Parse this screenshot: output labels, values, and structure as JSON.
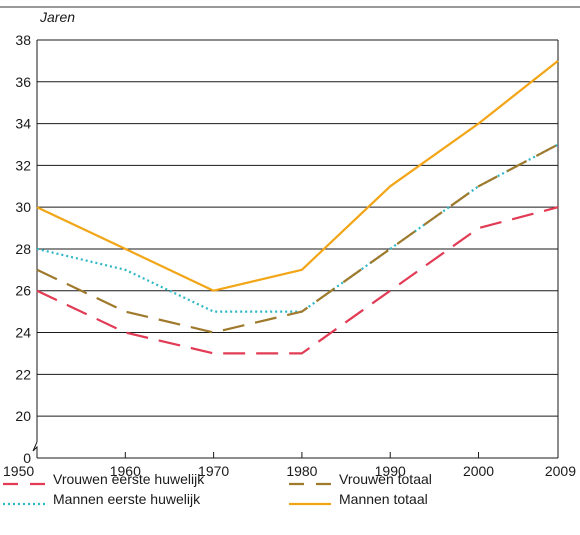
{
  "chart_data": {
    "type": "line",
    "ylabel": "Jaren",
    "xlabel": "",
    "x": [
      1950,
      1960,
      1970,
      1980,
      1990,
      2000,
      2009
    ],
    "x_ticks": [
      "1950",
      "1960",
      "1970",
      "1980",
      "1990",
      "2000",
      "2009"
    ],
    "y_ticks": [
      "0",
      "20",
      "22",
      "24",
      "26",
      "28",
      "30",
      "32",
      "34",
      "36",
      "38"
    ],
    "ylim": [
      19,
      38
    ],
    "axis_break": true,
    "grid": true,
    "legend_position": "bottom",
    "series": [
      {
        "name": "Vrouwen eerste huwelijk",
        "values": [
          26,
          24,
          23,
          23,
          26,
          29,
          30
        ],
        "color": "#e23b55",
        "style": "dashed"
      },
      {
        "name": "Vrouwen totaal",
        "values": [
          27,
          25,
          24,
          25,
          28,
          31,
          33
        ],
        "color": "#a07a2c",
        "style": "dashed"
      },
      {
        "name": "Mannen eerste huwelijk",
        "values": [
          28,
          27,
          25,
          25,
          28,
          31,
          33
        ],
        "color": "#2bb7c4",
        "style": "dotted"
      },
      {
        "name": "Mannen totaal",
        "values": [
          30,
          28,
          26,
          27,
          31,
          34,
          37
        ],
        "color": "#f2a516",
        "style": "solid"
      }
    ]
  }
}
